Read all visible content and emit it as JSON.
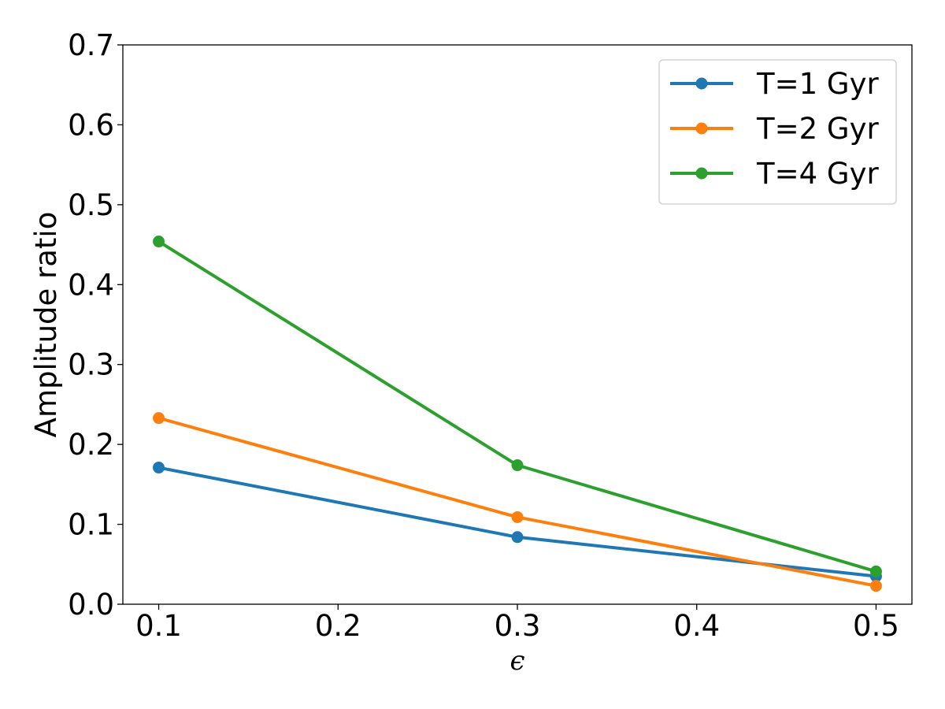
{
  "chart_data": {
    "type": "line",
    "title": "",
    "xlabel": "ϵ",
    "ylabel": "Amplitude ratio",
    "x": [
      0.1,
      0.3,
      0.5
    ],
    "xlim": [
      0.08,
      0.52
    ],
    "ylim": [
      0.0,
      0.7
    ],
    "xticks": [
      0.1,
      0.2,
      0.3,
      0.4,
      0.5
    ],
    "xtick_labels": [
      "0.1",
      "0.2",
      "0.3",
      "0.4",
      "0.5"
    ],
    "yticks": [
      0.0,
      0.1,
      0.2,
      0.3,
      0.4,
      0.5,
      0.6,
      0.7
    ],
    "ytick_labels": [
      "0.0",
      "0.1",
      "0.2",
      "0.3",
      "0.4",
      "0.5",
      "0.6",
      "0.7"
    ],
    "grid": false,
    "legend_position": "top-right",
    "series": [
      {
        "name": "T=1 Gyr",
        "color": "#1f77b4",
        "values": [
          0.171,
          0.084,
          0.035
        ]
      },
      {
        "name": "T=2 Gyr",
        "color": "#ff7f0e",
        "values": [
          0.233,
          0.109,
          0.023
        ]
      },
      {
        "name": "T=4 Gyr",
        "color": "#2ca02c",
        "values": [
          0.454,
          0.174,
          0.041
        ]
      }
    ]
  }
}
